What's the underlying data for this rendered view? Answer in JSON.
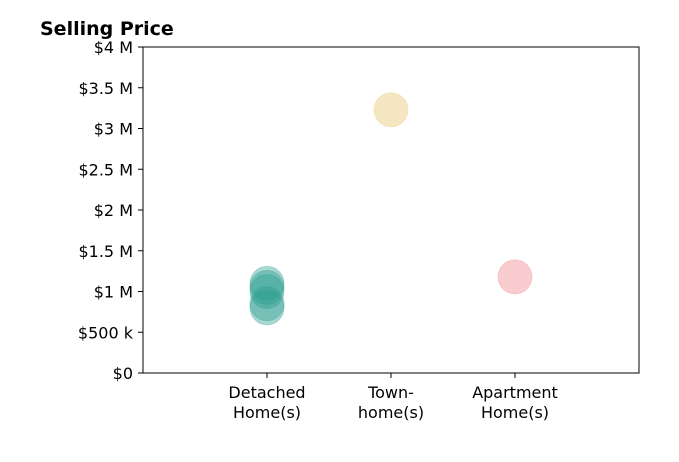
{
  "chart_data": {
    "type": "scatter",
    "title": "Selling Price",
    "xlabel": "",
    "ylabel": "",
    "categories": [
      [
        "Detached",
        "Home(s)"
      ],
      [
        "Town-",
        "home(s)"
      ],
      [
        "Apartment",
        "Home(s)"
      ]
    ],
    "xlim": [
      -1,
      3
    ],
    "ylim": [
      0,
      4000000
    ],
    "yticks": [
      0,
      500000,
      1000000,
      1500000,
      2000000,
      2500000,
      3000000,
      3500000,
      4000000
    ],
    "ytick_labels": [
      "$0",
      "$500 k",
      "$1 M",
      "$1.5 M",
      "$2 M",
      "$2.5 M",
      "$3 M",
      "$3.5 M",
      "$4 M"
    ],
    "grid": false,
    "points": [
      {
        "category": 0,
        "value": 1100000,
        "color": "#2a9d8f"
      },
      {
        "category": 0,
        "value": 1050000,
        "color": "#2a9d8f"
      },
      {
        "category": 0,
        "value": 1000000,
        "color": "#2a9d8f"
      },
      {
        "category": 0,
        "value": 850000,
        "color": "#2a9d8f"
      },
      {
        "category": 0,
        "value": 800000,
        "color": "#2a9d8f"
      },
      {
        "category": 1,
        "value": 3230000,
        "color": "#e9c46a"
      },
      {
        "category": 2,
        "value": 1180000,
        "color": "#ef7f8a"
      }
    ]
  }
}
